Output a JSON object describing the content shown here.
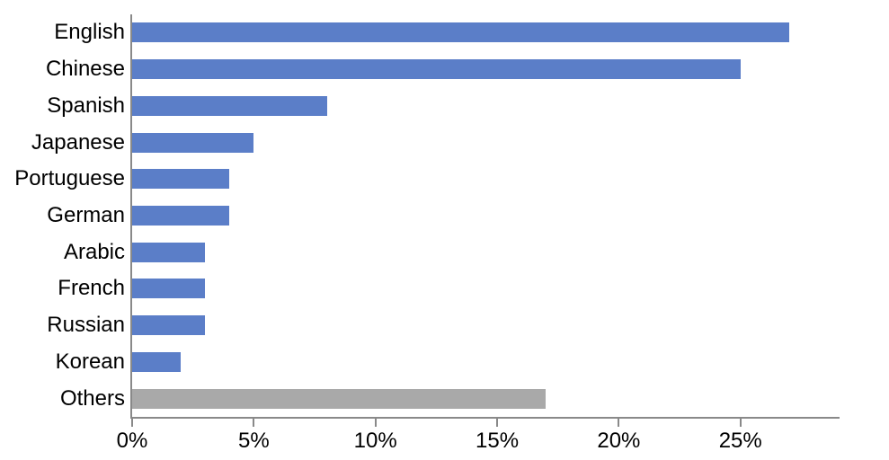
{
  "chart_data": {
    "type": "bar",
    "orientation": "horizontal",
    "title": "",
    "xlabel": "",
    "ylabel": "",
    "categories": [
      "English",
      "Chinese",
      "Spanish",
      "Japanese",
      "Portuguese",
      "German",
      "Arabic",
      "French",
      "Russian",
      "Korean",
      "Others"
    ],
    "values": [
      27,
      25,
      8,
      5,
      4,
      4,
      3,
      3,
      3,
      2,
      17
    ],
    "unit": "%",
    "xlim": [
      0,
      29
    ],
    "x_tick_values": [
      0,
      5,
      10,
      15,
      20,
      25
    ],
    "x_ticks": [
      "0%",
      "5%",
      "10%",
      "15%",
      "20%",
      "25%"
    ],
    "grid": false,
    "legend": false,
    "colors": {
      "bar_default": "#5B7EC8",
      "axis": "#898989",
      "text": "#000000",
      "background": "#FFFFFF"
    },
    "bar_color_overrides": {
      "Others": "#A9A9A9"
    }
  }
}
